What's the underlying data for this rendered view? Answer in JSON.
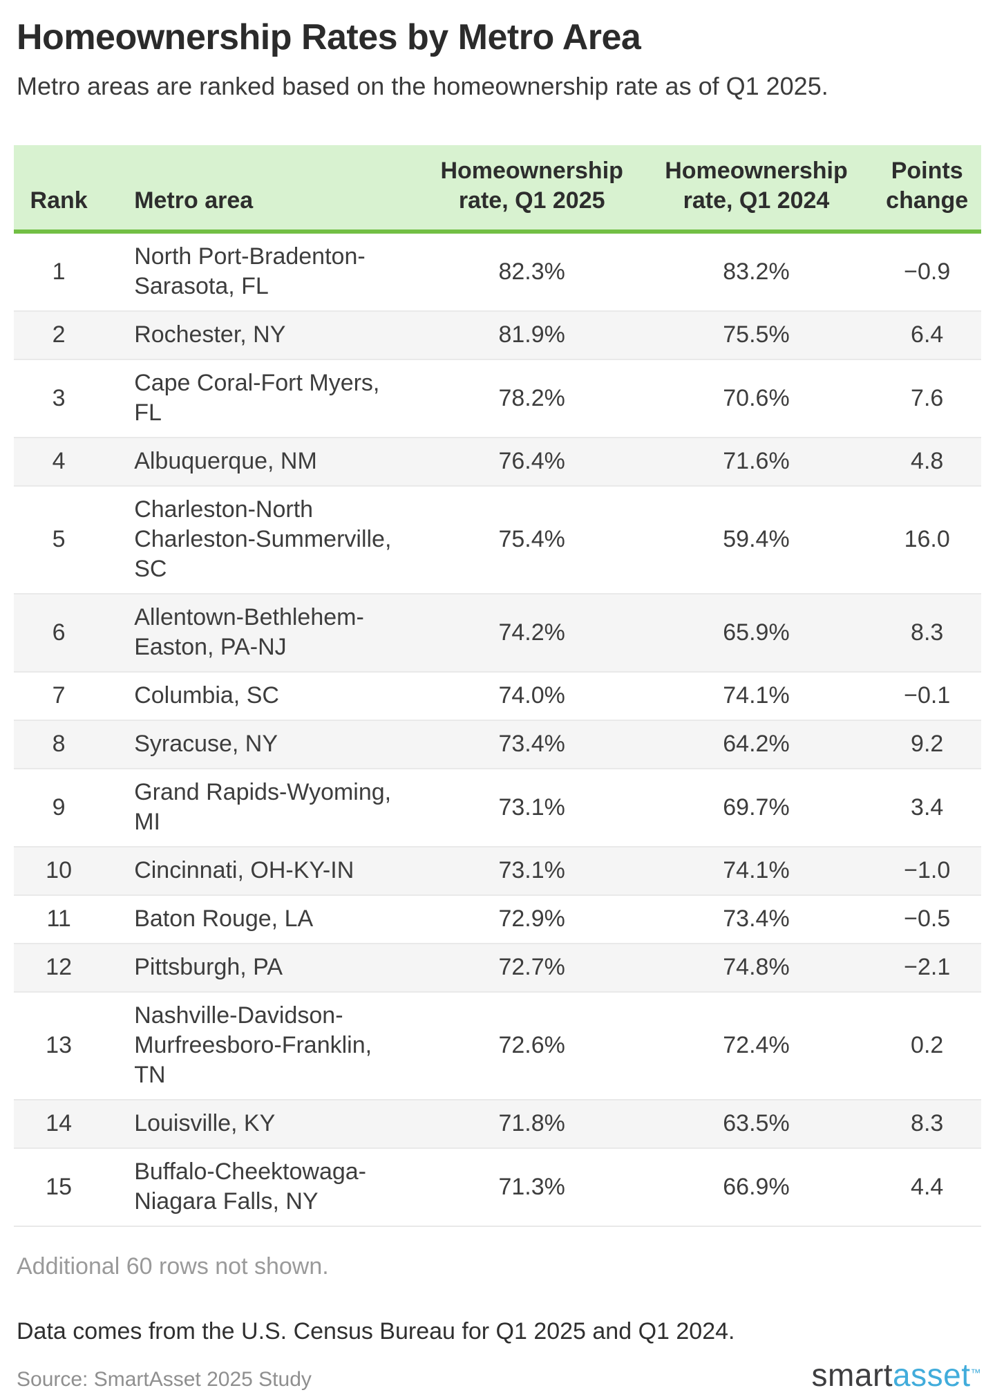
{
  "title": "Homeownership Rates by Metro Area",
  "subtitle": "Metro areas are ranked based on the homeownership rate as of Q1 2025.",
  "table": {
    "headers": {
      "rank": "Rank",
      "metro": "Metro area",
      "rate_2025": "Homeownership\nrate, Q1 2025",
      "rate_2024": "Homeownership\nrate, Q1 2024",
      "points": "Points\nchange"
    },
    "rows": [
      {
        "rank": "1",
        "metro": "North Port-Bradenton-\nSarasota, FL",
        "rate_2025": "82.3%",
        "rate_2024": "83.2%",
        "points": "−0.9"
      },
      {
        "rank": "2",
        "metro": "Rochester, NY",
        "rate_2025": "81.9%",
        "rate_2024": "75.5%",
        "points": "6.4"
      },
      {
        "rank": "3",
        "metro": "Cape Coral-Fort Myers,\nFL",
        "rate_2025": "78.2%",
        "rate_2024": "70.6%",
        "points": "7.6"
      },
      {
        "rank": "4",
        "metro": "Albuquerque, NM",
        "rate_2025": "76.4%",
        "rate_2024": "71.6%",
        "points": "4.8"
      },
      {
        "rank": "5",
        "metro": "Charleston-North\nCharleston-Summerville,\nSC",
        "rate_2025": "75.4%",
        "rate_2024": "59.4%",
        "points": "16.0"
      },
      {
        "rank": "6",
        "metro": "Allentown-Bethlehem-\nEaston, PA-NJ",
        "rate_2025": "74.2%",
        "rate_2024": "65.9%",
        "points": "8.3"
      },
      {
        "rank": "7",
        "metro": "Columbia, SC",
        "rate_2025": "74.0%",
        "rate_2024": "74.1%",
        "points": "−0.1"
      },
      {
        "rank": "8",
        "metro": "Syracuse, NY",
        "rate_2025": "73.4%",
        "rate_2024": "64.2%",
        "points": "9.2"
      },
      {
        "rank": "9",
        "metro": "Grand Rapids-Wyoming,\nMI",
        "rate_2025": "73.1%",
        "rate_2024": "69.7%",
        "points": "3.4"
      },
      {
        "rank": "10",
        "metro": "Cincinnati, OH-KY-IN",
        "rate_2025": "73.1%",
        "rate_2024": "74.1%",
        "points": "−1.0"
      },
      {
        "rank": "11",
        "metro": "Baton Rouge, LA",
        "rate_2025": "72.9%",
        "rate_2024": "73.4%",
        "points": "−0.5"
      },
      {
        "rank": "12",
        "metro": "Pittsburgh, PA",
        "rate_2025": "72.7%",
        "rate_2024": "74.8%",
        "points": "−2.1"
      },
      {
        "rank": "13",
        "metro": "Nashville-Davidson-\nMurfreesboro-Franklin,\nTN",
        "rate_2025": "72.6%",
        "rate_2024": "72.4%",
        "points": "0.2"
      },
      {
        "rank": "14",
        "metro": "Louisville, KY",
        "rate_2025": "71.8%",
        "rate_2024": "63.5%",
        "points": "8.3"
      },
      {
        "rank": "15",
        "metro": "Buffalo-Cheektowaga-\nNiagara Falls, NY",
        "rate_2025": "71.3%",
        "rate_2024": "66.9%",
        "points": "4.4"
      }
    ]
  },
  "notes": {
    "additional_rows": "Additional 60 rows not shown.",
    "data_source": "Data comes from the U.S. Census Bureau for Q1 2025 and Q1 2024.",
    "source": "Source: SmartAsset 2025 Study"
  },
  "logo": {
    "part1": "smart",
    "part2": "asset",
    "tm": "™"
  },
  "colors": {
    "header_bg": "#d8f2d0",
    "header_border": "#72bf44",
    "row_stripe": "#f5f5f5",
    "row_divider": "#e9e9e9",
    "title_text": "#2b2b2b",
    "body_text": "#3d3d3d",
    "muted_text": "#9a9a9a",
    "logo_dark": "#3e3e40",
    "logo_blue": "#41acdb"
  },
  "chart_data": {
    "type": "table",
    "title": "Homeownership Rates by Metro Area",
    "subtitle": "Metro areas are ranked based on the homeownership rate as of Q1 2025.",
    "columns": [
      "Rank",
      "Metro area",
      "Homeownership rate, Q1 2025 (%)",
      "Homeownership rate, Q1 2024 (%)",
      "Points change"
    ],
    "rows": [
      [
        1,
        "North Port-Bradenton-Sarasota, FL",
        82.3,
        83.2,
        -0.9
      ],
      [
        2,
        "Rochester, NY",
        81.9,
        75.5,
        6.4
      ],
      [
        3,
        "Cape Coral-Fort Myers, FL",
        78.2,
        70.6,
        7.6
      ],
      [
        4,
        "Albuquerque, NM",
        76.4,
        71.6,
        4.8
      ],
      [
        5,
        "Charleston-North Charleston-Summerville, SC",
        75.4,
        59.4,
        16.0
      ],
      [
        6,
        "Allentown-Bethlehem-Easton, PA-NJ",
        74.2,
        65.9,
        8.3
      ],
      [
        7,
        "Columbia, SC",
        74.0,
        74.1,
        -0.1
      ],
      [
        8,
        "Syracuse, NY",
        73.4,
        64.2,
        9.2
      ],
      [
        9,
        "Grand Rapids-Wyoming, MI",
        73.1,
        69.7,
        3.4
      ],
      [
        10,
        "Cincinnati, OH-KY-IN",
        73.1,
        74.1,
        -1.0
      ],
      [
        11,
        "Baton Rouge, LA",
        72.9,
        73.4,
        -0.5
      ],
      [
        12,
        "Pittsburgh, PA",
        72.7,
        74.8,
        -2.1
      ],
      [
        13,
        "Nashville-Davidson-Murfreesboro-Franklin, TN",
        72.6,
        72.4,
        0.2
      ],
      [
        14,
        "Louisville, KY",
        71.8,
        63.5,
        8.3
      ],
      [
        15,
        "Buffalo-Cheektowaga-Niagara Falls, NY",
        71.3,
        66.9,
        4.4
      ]
    ],
    "notes": [
      "Additional 60 rows not shown.",
      "Data comes from the U.S. Census Bureau for Q1 2025 and Q1 2024.",
      "Source: SmartAsset 2025 Study"
    ]
  }
}
